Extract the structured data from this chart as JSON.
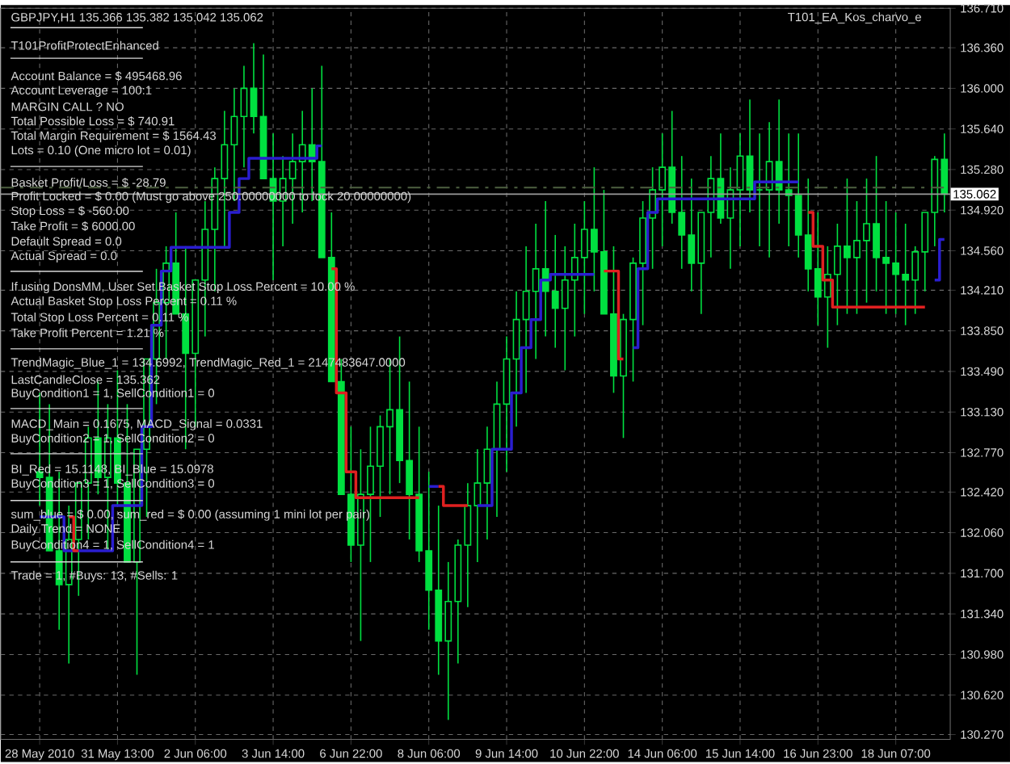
{
  "chart_data": {
    "type": "candlestick",
    "title": "GBPJPY,H1  135.366 135.382 135.042 135.062",
    "annotations": [
      "T101ProfitProtectEnhanced",
      "Account Balance = $ 495468.96",
      "Account Leverage = 100:1",
      "MARGIN CALL ?  NO",
      "Total Possible Loss = $ 740.91",
      "Total Margin Requirement = $ 1564.43",
      "Lots = 0.10 (One micro lot = 0.01)",
      "Basket Profit/Loss = $ -28.79",
      "Profit Locked = $ 0.00 (Must go above 250.00000000 to lock 20.00000000)",
      "Stop Loss = $ -560.00",
      "Take Profit = $ 6000.00",
      "Default Spread = 0.0",
      "Actual Spread = 0.0",
      "If using DonsMM, User Set Basket Stop Loss Percent = 10.00 %",
      "Actual Basket Stop Loss Percent = 0.11 %",
      "Total Stop Loss Percent = 0.11 %",
      "Take Profit Percent = 1.21 %",
      "TrendMagic_Blue_1 = 134.6992, TrendMagic_Red_1 = 2147483647.0000",
      "LastCandleClose = 135.362",
      "BuyCondition1 = 1, SellCondition1 = 0",
      "MACD_Main = 0.1675, MACD_Signal = 0.0331",
      "BuyCondition2 = 1, SellCondition2 = 0",
      "BI_Red = 15.1148, BI_Blue = 15.0978",
      "BuyCondition3 = 1, SellCondition3 = 0",
      "sum_blue = $ 0.00, sum_red = $ 0.00 (assuming 1 mini lot per pair)",
      "Daily Trend = NONE",
      "BuyCondition4 = 1, SellCondition4 = 1",
      "Trade = 1, #Buys: 13, #Sells: 1",
      "T101_EA_Kos_charvo_e"
    ],
    "categories": [
      "28 May 2010",
      null,
      null,
      null,
      null,
      null,
      null,
      null,
      "31 May 13:00",
      null,
      null,
      null,
      null,
      null,
      null,
      null,
      "2 Jun 06:00",
      null,
      null,
      null,
      null,
      null,
      null,
      null,
      "3 Jun 14:00",
      null,
      null,
      null,
      null,
      null,
      null,
      null,
      "6 Jun 22:00",
      null,
      null,
      null,
      null,
      null,
      null,
      null,
      "8 Jun 06:00",
      null,
      null,
      null,
      null,
      null,
      null,
      null,
      "9 Jun 14:00",
      null,
      null,
      null,
      null,
      null,
      null,
      null,
      "10 Jun 22:00",
      null,
      null,
      null,
      null,
      null,
      null,
      null,
      "14 Jun 06:00",
      null,
      null,
      null,
      null,
      null,
      null,
      null,
      "15 Jun 14:00",
      null,
      null,
      null,
      null,
      null,
      null,
      null,
      "16 Jun 23:00",
      null,
      null,
      null,
      null,
      null,
      null,
      null,
      "18 Jun 07:00",
      null,
      null,
      null,
      null,
      null
    ],
    "ohlc": [
      [
        132.6,
        133.3,
        132.3,
        132.55
      ],
      [
        132.55,
        133.2,
        131.9,
        131.9
      ],
      [
        131.9,
        132.6,
        131.2,
        131.6
      ],
      [
        131.6,
        132.3,
        130.9,
        132.0
      ],
      [
        132.0,
        132.5,
        131.5,
        132.5
      ],
      [
        132.5,
        133.0,
        132.0,
        132.9
      ],
      [
        132.9,
        133.4,
        132.4,
        132.55
      ],
      [
        132.55,
        133.2,
        131.9,
        132.9
      ],
      [
        132.9,
        133.5,
        132.3,
        132.5
      ],
      [
        132.5,
        133.2,
        131.8,
        131.8
      ],
      [
        131.8,
        132.8,
        130.8,
        132.8
      ],
      [
        132.8,
        133.6,
        132.2,
        133.6
      ],
      [
        133.6,
        134.4,
        133.2,
        134.1
      ],
      [
        134.1,
        134.6,
        133.6,
        134.45
      ],
      [
        134.45,
        134.9,
        134.0,
        134.0
      ],
      [
        134.0,
        134.6,
        132.8,
        133.65
      ],
      [
        133.65,
        134.3,
        133.0,
        134.3
      ],
      [
        134.3,
        135.0,
        133.8,
        134.75
      ],
      [
        134.75,
        135.3,
        134.2,
        135.2
      ],
      [
        135.2,
        135.8,
        134.6,
        135.5
      ],
      [
        135.5,
        136.0,
        135.0,
        135.75
      ],
      [
        135.75,
        136.2,
        135.3,
        136.0
      ],
      [
        136.0,
        136.4,
        135.6,
        135.75
      ],
      [
        135.75,
        136.3,
        135.2,
        135.2
      ],
      [
        135.2,
        135.6,
        134.3,
        135.0
      ],
      [
        135.0,
        135.4,
        134.6,
        135.2
      ],
      [
        135.2,
        135.6,
        134.8,
        135.35
      ],
      [
        135.35,
        135.8,
        134.9,
        135.5
      ],
      [
        135.5,
        136.0,
        135.0,
        135.35
      ],
      [
        135.35,
        136.2,
        134.5,
        134.5
      ],
      [
        134.5,
        134.9,
        133.4,
        133.4
      ],
      [
        133.4,
        133.6,
        132.4,
        132.4
      ],
      [
        132.4,
        133.0,
        131.8,
        131.95
      ],
      [
        131.95,
        132.8,
        131.1,
        132.4
      ],
      [
        132.4,
        133.0,
        131.8,
        132.65
      ],
      [
        132.65,
        133.1,
        132.2,
        133.0
      ],
      [
        133.0,
        133.6,
        132.4,
        133.15
      ],
      [
        133.15,
        133.8,
        132.5,
        132.7
      ],
      [
        132.7,
        133.4,
        132.0,
        132.4
      ],
      [
        132.4,
        133.0,
        131.8,
        131.9
      ],
      [
        131.9,
        132.6,
        131.2,
        131.55
      ],
      [
        131.55,
        132.3,
        130.8,
        131.1
      ],
      [
        131.1,
        131.8,
        130.4,
        131.45
      ],
      [
        131.45,
        132.0,
        130.9,
        131.95
      ],
      [
        131.95,
        132.5,
        131.4,
        132.3
      ],
      [
        132.3,
        132.8,
        131.8,
        132.5
      ],
      [
        132.5,
        133.0,
        132.0,
        132.8
      ],
      [
        132.8,
        133.4,
        132.2,
        133.2
      ],
      [
        133.2,
        133.8,
        132.6,
        133.6
      ],
      [
        133.6,
        134.2,
        133.0,
        133.95
      ],
      [
        133.95,
        134.6,
        133.3,
        134.2
      ],
      [
        134.2,
        134.8,
        133.6,
        134.4
      ],
      [
        134.4,
        135.0,
        133.8,
        134.2
      ],
      [
        134.2,
        134.7,
        133.7,
        134.05
      ],
      [
        134.05,
        134.6,
        133.5,
        134.3
      ],
      [
        134.3,
        134.8,
        133.8,
        134.5
      ],
      [
        134.5,
        135.0,
        134.0,
        134.75
      ],
      [
        134.75,
        135.3,
        134.2,
        134.55
      ],
      [
        134.55,
        135.1,
        134.0,
        134.0
      ],
      [
        134.0,
        134.6,
        133.3,
        133.45
      ],
      [
        133.45,
        134.0,
        132.9,
        133.95
      ],
      [
        133.95,
        134.5,
        133.4,
        134.45
      ],
      [
        134.45,
        135.0,
        133.9,
        134.85
      ],
      [
        134.85,
        135.3,
        134.4,
        135.1
      ],
      [
        135.1,
        135.6,
        134.6,
        135.3
      ],
      [
        135.3,
        135.8,
        134.8,
        134.9
      ],
      [
        134.9,
        135.4,
        134.4,
        134.7
      ],
      [
        134.7,
        135.2,
        134.2,
        134.45
      ],
      [
        134.45,
        134.9,
        134.0,
        134.9
      ],
      [
        134.9,
        135.4,
        134.5,
        135.2
      ],
      [
        135.2,
        135.6,
        134.8,
        134.85
      ],
      [
        134.85,
        135.3,
        134.4,
        135.1
      ],
      [
        135.1,
        135.6,
        134.6,
        135.4
      ],
      [
        135.4,
        135.9,
        134.9,
        135.1
      ],
      [
        135.1,
        135.6,
        134.6,
        135.1
      ],
      [
        135.1,
        135.7,
        134.5,
        135.35
      ],
      [
        135.35,
        135.9,
        134.8,
        135.1
      ],
      [
        135.1,
        135.6,
        134.6,
        135.05
      ],
      [
        135.05,
        135.6,
        134.5,
        134.7
      ],
      [
        134.7,
        135.2,
        134.2,
        134.4
      ],
      [
        134.4,
        134.9,
        133.9,
        134.15
      ],
      [
        134.15,
        134.6,
        133.7,
        134.35
      ],
      [
        134.35,
        134.8,
        133.9,
        134.6
      ],
      [
        134.6,
        135.2,
        134.0,
        134.5
      ],
      [
        134.5,
        135.0,
        134.0,
        134.65
      ],
      [
        134.65,
        135.2,
        134.1,
        134.8
      ],
      [
        134.8,
        135.4,
        134.2,
        134.5
      ],
      [
        134.5,
        135.0,
        134.0,
        134.45
      ],
      [
        134.45,
        134.9,
        134.0,
        134.35
      ],
      [
        134.35,
        134.8,
        133.9,
        134.3
      ],
      [
        134.3,
        134.6,
        134.0,
        134.55
      ],
      [
        134.55,
        134.9,
        134.2,
        134.9
      ],
      [
        134.9,
        135.4,
        134.6,
        135.37
      ],
      [
        135.37,
        135.6,
        134.9,
        135.062
      ]
    ],
    "color": "#00e040",
    "series": [
      {
        "type": "step",
        "color": "#2a1ed0",
        "values": [
          132.2,
          132.2,
          132.2,
          131.9,
          131.9,
          131.9,
          131.9,
          131.9,
          132.3,
          132.3,
          132.3,
          133.0,
          133.9,
          134.38,
          134.59,
          134.59,
          134.59,
          134.59,
          134.59,
          134.59,
          134.9,
          135.2,
          135.38,
          135.38,
          135.38,
          135.38,
          135.38,
          135.38,
          135.38,
          135.49,
          null,
          null,
          null,
          null,
          null,
          null,
          null,
          null,
          null,
          null,
          132.47,
          132.47,
          null,
          null,
          null,
          132.3,
          132.3,
          132.8,
          132.8,
          133.3,
          133.7,
          133.95,
          134.3,
          134.35,
          134.35,
          134.35,
          134.35,
          134.35,
          null,
          null,
          null,
          133.7,
          134.4,
          134.9,
          135.02,
          135.02,
          135.02,
          135.02,
          135.02,
          135.02,
          135.02,
          135.02,
          135.02,
          135.02,
          135.17,
          135.17,
          135.17,
          135.17,
          135.17,
          null,
          null,
          null,
          null,
          null,
          null,
          null,
          null,
          null,
          null,
          null,
          null,
          null,
          134.3,
          134.66
        ]
      },
      {
        "type": "step",
        "color": "#e02020",
        "values": [
          null,
          null,
          null,
          132.2,
          131.9,
          null,
          null,
          null,
          null,
          null,
          null,
          null,
          null,
          null,
          null,
          null,
          null,
          null,
          null,
          null,
          null,
          null,
          null,
          null,
          null,
          null,
          null,
          null,
          null,
          null,
          134.4,
          133.3,
          132.6,
          132.37,
          132.37,
          132.37,
          132.37,
          132.37,
          132.37,
          132.37,
          null,
          132.47,
          132.3,
          132.3,
          132.3,
          null,
          null,
          null,
          null,
          null,
          null,
          null,
          null,
          null,
          null,
          null,
          null,
          null,
          134.38,
          134.38,
          133.6,
          null,
          null,
          null,
          null,
          null,
          null,
          null,
          null,
          null,
          null,
          null,
          null,
          null,
          null,
          null,
          null,
          null,
          null,
          134.9,
          134.6,
          134.3,
          134.06,
          134.06,
          134.06,
          134.06,
          134.06,
          134.06,
          134.06,
          134.06,
          134.06,
          134.06,
          null,
          null
        ]
      }
    ],
    "ylim": [
      130.227,
      136.71
    ],
    "yticks": [
      {
        "value": 130.27,
        "label": "130.270"
      },
      {
        "value": 130.62,
        "label": "130.620"
      },
      {
        "value": 130.98,
        "label": "130.980"
      },
      {
        "value": 131.34,
        "label": "131.340"
      },
      {
        "value": 131.7,
        "label": "131.700"
      },
      {
        "value": 132.06,
        "label": "132.060"
      },
      {
        "value": 132.42,
        "label": "132.420"
      },
      {
        "value": 132.77,
        "label": "132.770"
      },
      {
        "value": 133.13,
        "label": "133.130"
      },
      {
        "value": 133.49,
        "label": "133.490"
      },
      {
        "value": 133.85,
        "label": "133.850"
      },
      {
        "value": 134.21,
        "label": "134.210"
      },
      {
        "value": 134.56,
        "label": "134.560"
      },
      {
        "value": 134.92,
        "label": "134.920"
      },
      {
        "value": 135.28,
        "label": "135.280"
      },
      {
        "value": 135.64,
        "label": "135.640"
      },
      {
        "value": 136.0,
        "label": "136.000"
      },
      {
        "value": 136.36,
        "label": "136.360"
      },
      {
        "value": 136.71,
        "label": "136.710"
      }
    ],
    "ref_lines": [
      {
        "axis": "y",
        "value": 135.062,
        "label": "135.062",
        "color": "#9a9a9a",
        "line_style": "solid"
      },
      {
        "axis": "y",
        "value": 135.12,
        "color": "#4e6040",
        "line_style": "dashed"
      }
    ],
    "grid": true
  }
}
